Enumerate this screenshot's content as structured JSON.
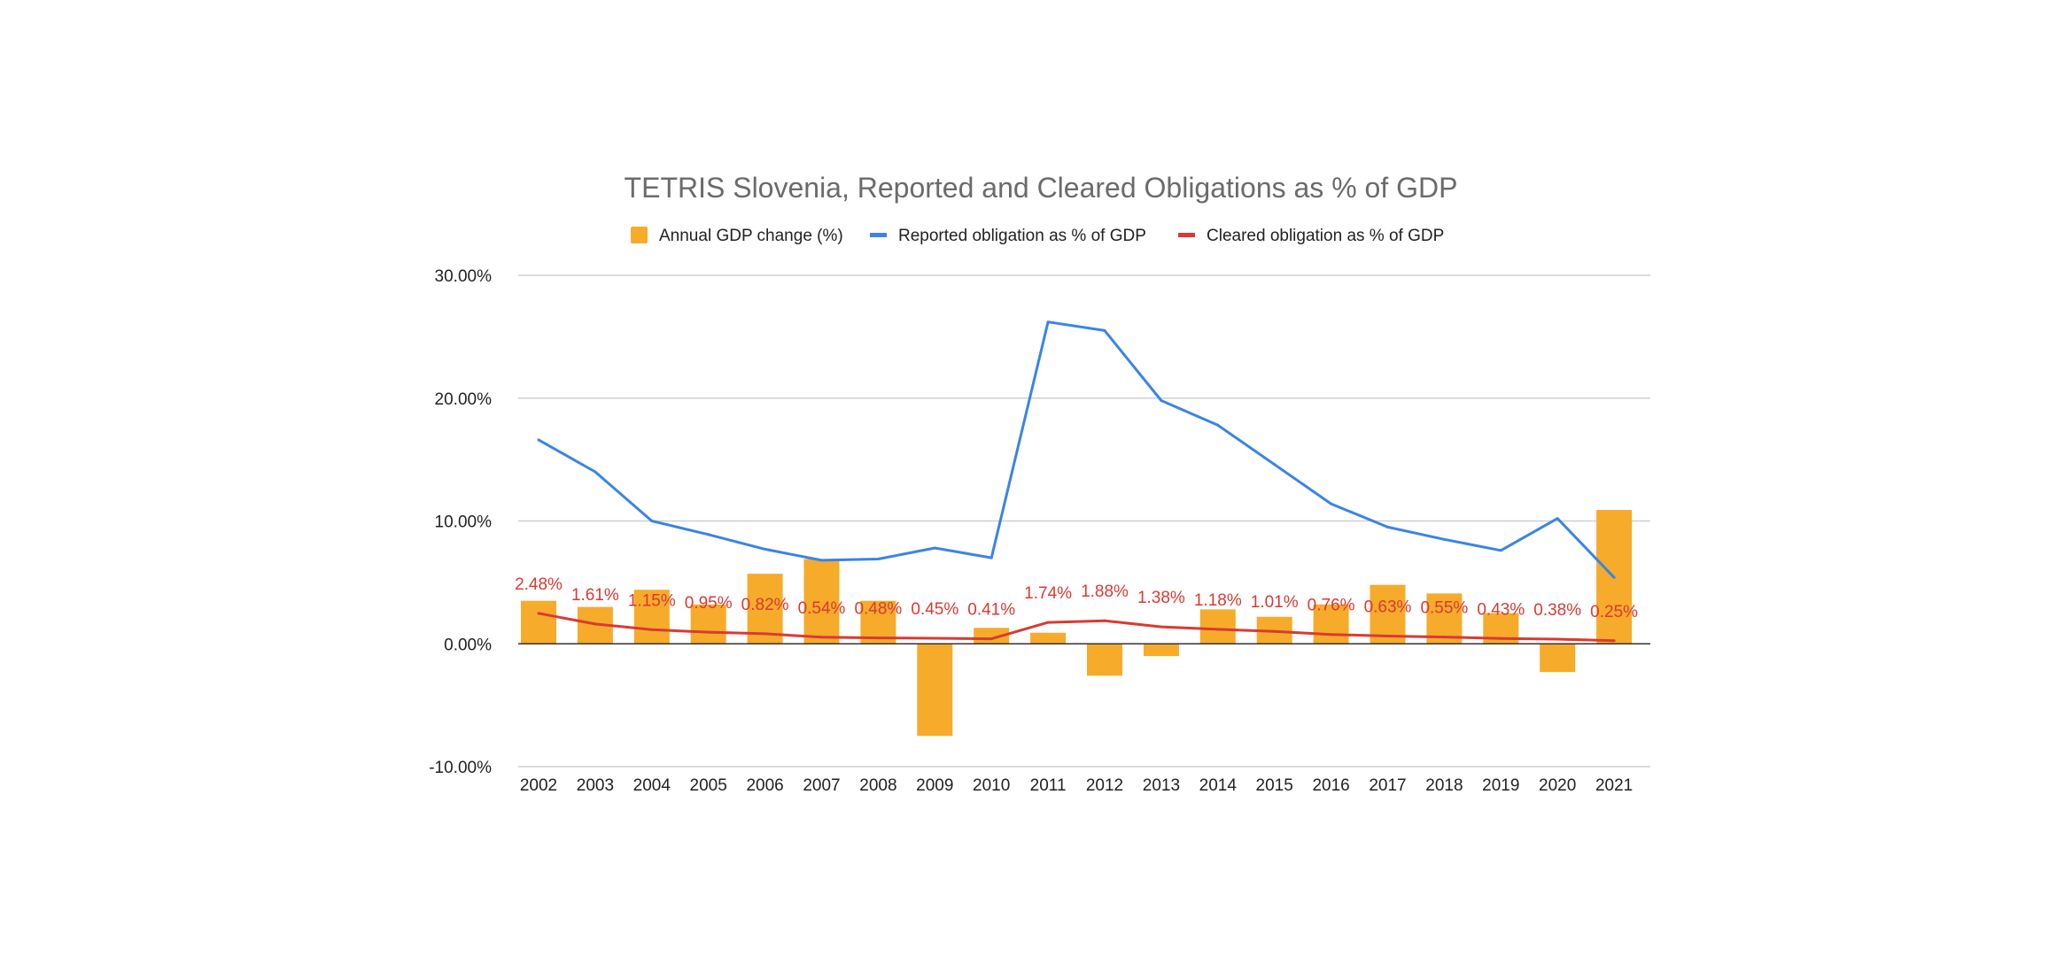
{
  "chart_data": {
    "type": "bar",
    "title": "TETRIS Slovenia, Reported and Cleared Obligations as % of GDP",
    "xlabel": "",
    "ylabel": "",
    "ylim": [
      -10,
      30
    ],
    "y_ticks": [
      30,
      20,
      10,
      0,
      -10
    ],
    "y_tick_labels": [
      "30.00%",
      "20.00%",
      "10.00%",
      "0.00%",
      "-10.00%"
    ],
    "grid": true,
    "legend_position": "top",
    "categories": [
      "2002",
      "2003",
      "2004",
      "2005",
      "2006",
      "2007",
      "2008",
      "2009",
      "2010",
      "2011",
      "2012",
      "2013",
      "2014",
      "2015",
      "2016",
      "2017",
      "2018",
      "2019",
      "2020",
      "2021"
    ],
    "series": [
      {
        "name": "Annual GDP change (%)",
        "type": "bar",
        "color": "#f6ab2b",
        "values": [
          3.5,
          3.0,
          4.4,
          3.2,
          5.7,
          6.9,
          3.5,
          -7.5,
          1.3,
          0.9,
          -2.6,
          -1.0,
          2.8,
          2.2,
          3.2,
          4.8,
          4.1,
          2.5,
          -2.3,
          10.9
        ]
      },
      {
        "name": "Reported obligation as % of GDP",
        "type": "line",
        "color": "#3a84e6",
        "values": [
          16.6,
          14.0,
          10.0,
          8.9,
          7.7,
          6.8,
          6.9,
          7.8,
          7.0,
          26.2,
          25.5,
          19.8,
          17.8,
          14.6,
          11.4,
          9.5,
          8.5,
          7.6,
          10.2,
          5.4
        ]
      },
      {
        "name": "Cleared obligation as % of GDP",
        "type": "line",
        "color": "#d93a33",
        "values": [
          2.48,
          1.61,
          1.15,
          0.95,
          0.82,
          0.54,
          0.48,
          0.45,
          0.41,
          1.74,
          1.88,
          1.38,
          1.18,
          1.01,
          0.76,
          0.63,
          0.55,
          0.43,
          0.38,
          0.25
        ],
        "labels": [
          "2.48%",
          "1.61%",
          "1.15%",
          "0.95%",
          "0.82%",
          "0.54%",
          "0.48%",
          "0.45%",
          "0.41%",
          "1.74%",
          "1.88%",
          "1.38%",
          "1.18%",
          "1.01%",
          "0.76%",
          "0.63%",
          "0.55%",
          "0.43%",
          "0.38%",
          "0.25%"
        ]
      }
    ]
  }
}
